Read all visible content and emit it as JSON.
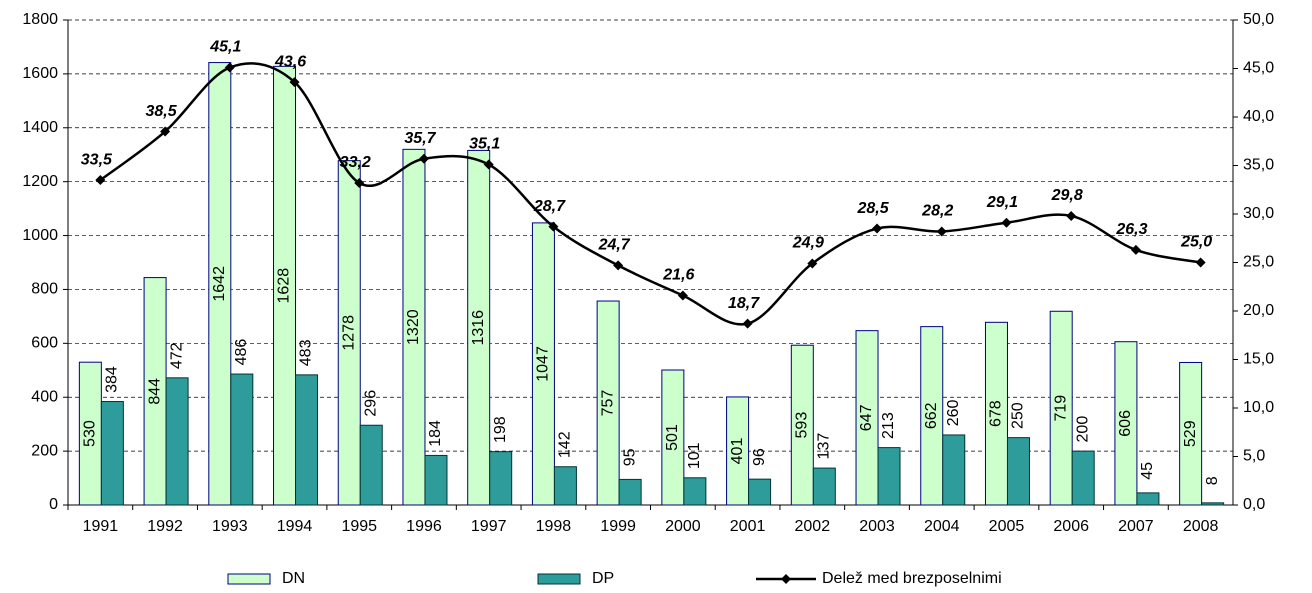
{
  "chart_data": {
    "type": "bar_line",
    "categories": [
      "1991",
      "1992",
      "1993",
      "1994",
      "1995",
      "1996",
      "1997",
      "1998",
      "1999",
      "2000",
      "2001",
      "2002",
      "2003",
      "2004",
      "2005",
      "2006",
      "2007",
      "2008"
    ],
    "series": [
      {
        "name": "DN",
        "type": "bar",
        "color": "#ccffcc",
        "values": [
          530,
          844,
          1642,
          1628,
          1278,
          1320,
          1316,
          1047,
          757,
          501,
          401,
          593,
          647,
          662,
          678,
          719,
          606,
          529
        ]
      },
      {
        "name": "DP",
        "type": "bar",
        "color": "#2f9c9c",
        "values": [
          384,
          472,
          486,
          483,
          296,
          184,
          198,
          142,
          95,
          101,
          96,
          137,
          213,
          260,
          250,
          200,
          45,
          8
        ]
      },
      {
        "name": "Delež med brezposelnimi",
        "type": "line",
        "axis": "y2",
        "color": "#000000",
        "values": [
          33.5,
          38.5,
          45.1,
          43.6,
          33.2,
          35.7,
          35.1,
          28.7,
          24.7,
          21.6,
          18.7,
          24.9,
          28.5,
          28.2,
          29.1,
          29.8,
          26.3,
          25.0
        ],
        "value_labels": [
          "33,5",
          "38,5",
          "45,1",
          "43,6",
          "33,2",
          "35,7",
          "35,1",
          "28,7",
          "24,7",
          "21,6",
          "18,7",
          "24,9",
          "28,5",
          "28,2",
          "29,1",
          "29,8",
          "26,3",
          "25,0"
        ]
      }
    ],
    "ylim": [
      0,
      1800
    ],
    "yticks": [
      0,
      200,
      400,
      600,
      800,
      1000,
      1200,
      1400,
      1600,
      1800
    ],
    "y2lim": [
      0,
      50
    ],
    "y2ticks": [
      {
        "value": 0,
        "label": "0,0"
      },
      {
        "value": 5,
        "label": "5,0"
      },
      {
        "value": 10,
        "label": "10,0"
      },
      {
        "value": 15,
        "label": "15,0"
      },
      {
        "value": 20,
        "label": "20,0"
      },
      {
        "value": 25,
        "label": "25,0"
      },
      {
        "value": 30,
        "label": "30,0"
      },
      {
        "value": 35,
        "label": "35,0"
      },
      {
        "value": 40,
        "label": "40,0"
      },
      {
        "value": 45,
        "label": "45,0"
      },
      {
        "value": 50,
        "label": "50,0"
      }
    ],
    "grid": true,
    "legend": "bottom"
  }
}
